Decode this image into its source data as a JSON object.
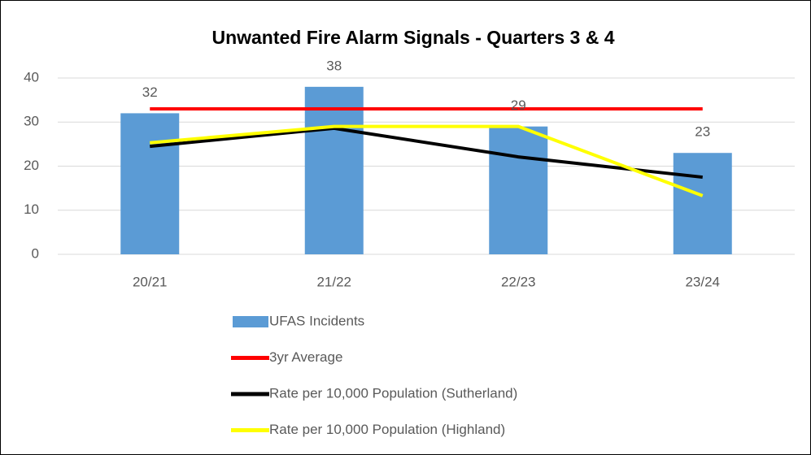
{
  "chart_data": {
    "type": "bar",
    "title": "Unwanted Fire Alarm Signals - Quarters 3 & 4",
    "categories": [
      "20/21",
      "21/22",
      "22/23",
      "23/24"
    ],
    "series": [
      {
        "name": "UFAS Incidents",
        "type": "bar",
        "color": "#5b9bd5",
        "values": [
          32,
          38,
          29,
          23
        ]
      },
      {
        "name": "3yr Average",
        "type": "line",
        "color": "#ff0000",
        "values": [
          33,
          33,
          33,
          33
        ]
      },
      {
        "name": "Rate per 10,000 Population (Sutherland)",
        "type": "line",
        "color": "#000000",
        "values": [
          24.5,
          28.6,
          22.1,
          17.5
        ]
      },
      {
        "name": "Rate per 10,000 Population (Highland)",
        "type": "line",
        "color": "#ffff00",
        "values": [
          25.3,
          29,
          29,
          13.3
        ]
      }
    ],
    "ylim": [
      0,
      40
    ],
    "yticks": [
      0,
      10,
      20,
      30,
      40
    ],
    "grid": true,
    "legend": "bottom"
  }
}
